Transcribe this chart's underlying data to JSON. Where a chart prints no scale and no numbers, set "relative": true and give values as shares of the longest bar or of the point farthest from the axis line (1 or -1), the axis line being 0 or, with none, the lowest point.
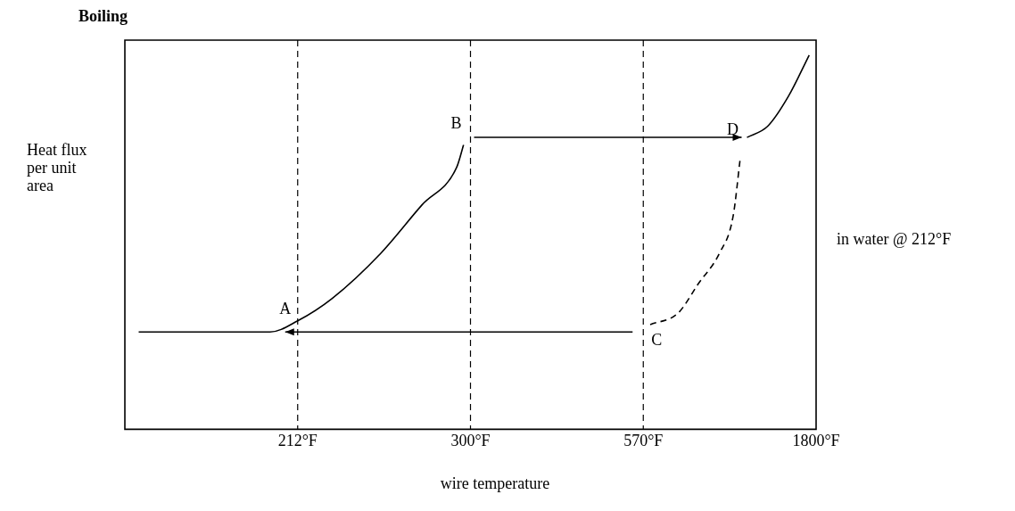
{
  "chart_data": {
    "type": "line",
    "title": "Boiling",
    "xlabel": "wire temperature",
    "ylabel": "Heat flux per unit area",
    "relative": true,
    "marker": "none",
    "categories": [
      null,
      null,
      null,
      null,
      null,
      null,
      null,
      null,
      null,
      null,
      null,
      null,
      null,
      null,
      null,
      null,
      null,
      null,
      null,
      null,
      null,
      null,
      null,
      null,
      null,
      "212°F",
      null,
      null,
      null,
      null,
      null,
      null,
      null,
      null,
      null,
      null,
      null,
      null,
      null,
      null,
      null,
      null,
      null,
      null,
      null,
      null,
      null,
      null,
      null,
      null,
      "300°F",
      null,
      null,
      null,
      null,
      null,
      null,
      null,
      null,
      null,
      null,
      null,
      null,
      null,
      null,
      null,
      null,
      null,
      null,
      null,
      null,
      null,
      null,
      null,
      null,
      "570°F",
      null,
      null,
      null,
      null,
      null,
      null,
      null,
      null,
      null,
      null,
      null,
      null,
      null,
      null,
      null,
      null,
      null,
      null,
      null,
      null,
      null,
      null,
      null,
      null,
      "1800°F"
    ],
    "series": [
      {
        "color": "#000000",
        "values": [
          null,
          null,
          0.26,
          null,
          null,
          null,
          null,
          null,
          null,
          null,
          null,
          null,
          null,
          null,
          null,
          null,
          null,
          null,
          null,
          null,
          null,
          0.26,
          null,
          null,
          null,
          0.29,
          null,
          null,
          null,
          null,
          0.35,
          null,
          null,
          null,
          null,
          null,
          null,
          0.47,
          null,
          null,
          null,
          null,
          null,
          0.6,
          null,
          null,
          null,
          null,
          0.7,
          0.76,
          null,
          null,
          null,
          null,
          null,
          null,
          null,
          null,
          null,
          null,
          null,
          null,
          null,
          null,
          null,
          null,
          null,
          null,
          null,
          null,
          null,
          null,
          null,
          null,
          null,
          null,
          null,
          null,
          null,
          null,
          null,
          null,
          null,
          null,
          null,
          null,
          null,
          null,
          null,
          null,
          null,
          null,
          null,
          null,
          null,
          null,
          null,
          null,
          null,
          null,
          null
        ]
      },
      {
        "color": "#000000",
        "values": [
          null,
          null,
          null,
          null,
          null,
          null,
          null,
          null,
          null,
          null,
          null,
          null,
          null,
          null,
          null,
          null,
          null,
          null,
          null,
          null,
          null,
          null,
          null,
          null,
          null,
          null,
          null,
          null,
          null,
          null,
          null,
          null,
          null,
          null,
          null,
          null,
          null,
          null,
          null,
          null,
          null,
          null,
          null,
          null,
          null,
          null,
          null,
          null,
          null,
          null,
          null,
          null,
          null,
          null,
          null,
          null,
          null,
          null,
          null,
          null,
          null,
          null,
          null,
          null,
          null,
          null,
          null,
          null,
          null,
          null,
          null,
          null,
          null,
          null,
          null,
          null,
          null,
          null,
          null,
          null,
          null,
          null,
          null,
          null,
          null,
          null,
          null,
          null,
          null,
          null,
          0.78,
          null,
          null,
          0.81,
          null,
          null,
          0.89,
          null,
          null,
          1,
          null
        ]
      },
      {
        "color": "#000000",
        "line_style": "dashed",
        "values": [
          null,
          null,
          null,
          null,
          null,
          null,
          null,
          null,
          null,
          null,
          null,
          null,
          null,
          null,
          null,
          null,
          null,
          null,
          null,
          null,
          null,
          null,
          null,
          null,
          null,
          null,
          null,
          null,
          null,
          null,
          null,
          null,
          null,
          null,
          null,
          null,
          null,
          null,
          null,
          null,
          null,
          null,
          null,
          null,
          null,
          null,
          null,
          null,
          null,
          null,
          null,
          null,
          null,
          null,
          null,
          null,
          null,
          null,
          null,
          null,
          null,
          null,
          null,
          null,
          null,
          null,
          null,
          null,
          null,
          null,
          null,
          null,
          null,
          null,
          null,
          null,
          0.28,
          null,
          null,
          null,
          0.31,
          null,
          null,
          0.39,
          null,
          null,
          0.47,
          null,
          0.57,
          0.72,
          null,
          null,
          null,
          null,
          null,
          null,
          null,
          null,
          null,
          null,
          null
        ]
      }
    ],
    "ref_lines": [
      {
        "axis": "x",
        "value": "212°F",
        "line_style": "dashed",
        "color": "#000000"
      },
      {
        "axis": "x",
        "value": "300°F",
        "line_style": "dashed",
        "color": "#000000"
      },
      {
        "axis": "x",
        "value": "570°F",
        "line_style": "dashed",
        "color": "#000000"
      }
    ],
    "annotations": [
      {
        "text": "A",
        "x": "212°F",
        "y": 0.29
      },
      {
        "text": "B",
        "x": "300°F",
        "y": 0.77
      },
      {
        "text": "C",
        "x": "570°F",
        "y": 0.26
      },
      "D",
      "in water @ 212°F"
    ]
  }
}
